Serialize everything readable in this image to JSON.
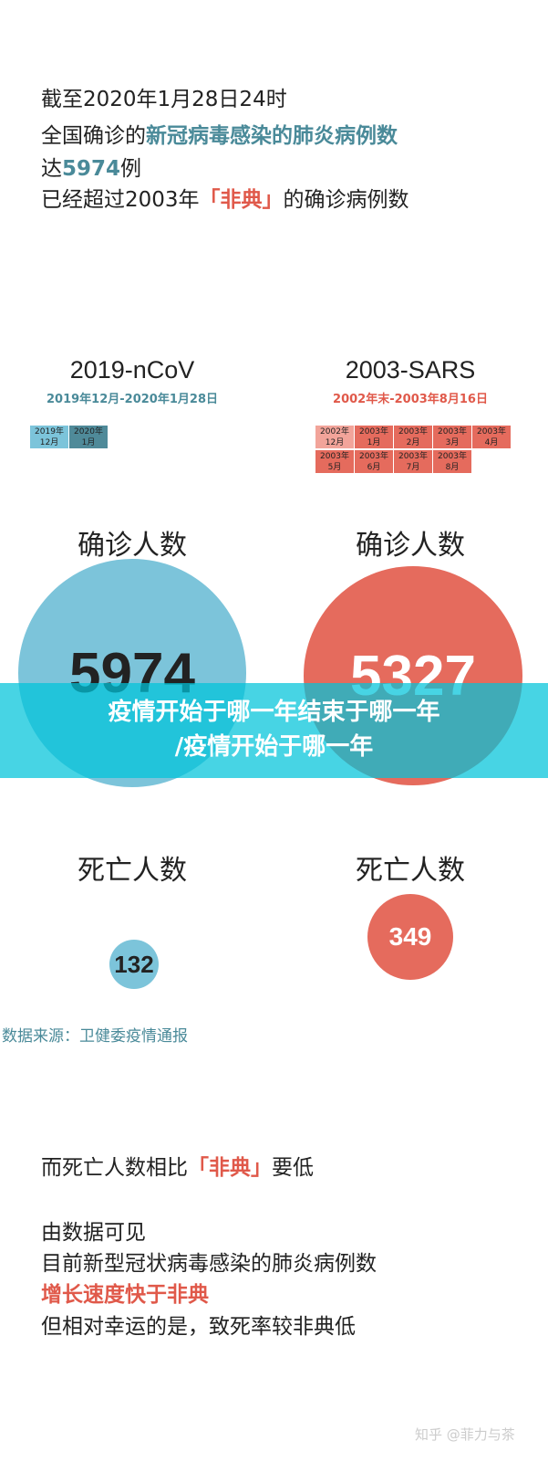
{
  "intro": {
    "l1": "截至2020年1月28日24时",
    "l2a": "全国确诊的",
    "l2b": "新冠病毒感染的肺炎病例数",
    "l3a": "达",
    "l3b": "5974",
    "l3c": "例",
    "l4a": "已经超过2003年",
    "l4b": "「非典」",
    "l4c": "的确诊病例数"
  },
  "ncov": {
    "title": "2019-nCoV",
    "range": "2019年12月-2020年1月28日",
    "months": [
      "2019年\n12月",
      "2020年\n1月"
    ],
    "confirmed_label": "确诊人数",
    "confirmed": "5974",
    "deaths_label": "死亡人数",
    "deaths": "132",
    "color": "#7cc4da"
  },
  "sars": {
    "title": "2003-SARS",
    "range": "2002年末-2003年8月16日",
    "months": [
      "2002年\n12月",
      "2003年\n1月",
      "2003年\n2月",
      "2003年\n3月",
      "2003年\n4月",
      "2003年\n5月",
      "2003年\n6月",
      "2003年\n7月",
      "2003年\n8月"
    ],
    "confirmed_label": "确诊人数",
    "confirmed": "5327",
    "deaths_label": "死亡人数",
    "deaths": "349",
    "color": "#e56b5d"
  },
  "source": "数据来源：卫健委疫情通报",
  "banner": {
    "l1": "疫情开始于哪一年结束于哪一年",
    "l2": "/疫情开始于哪一年"
  },
  "outro": {
    "l1a": "而死亡人数相比",
    "l1b": "「非典」",
    "l1c": "要低",
    "l2": "由数据可见",
    "l3": "目前新型冠状病毒感染的肺炎病例数",
    "l4": "增长速度快于非典",
    "l5": "但相对幸运的是，致死率较非典低"
  },
  "watermark": "知乎 @菲力与茶"
}
